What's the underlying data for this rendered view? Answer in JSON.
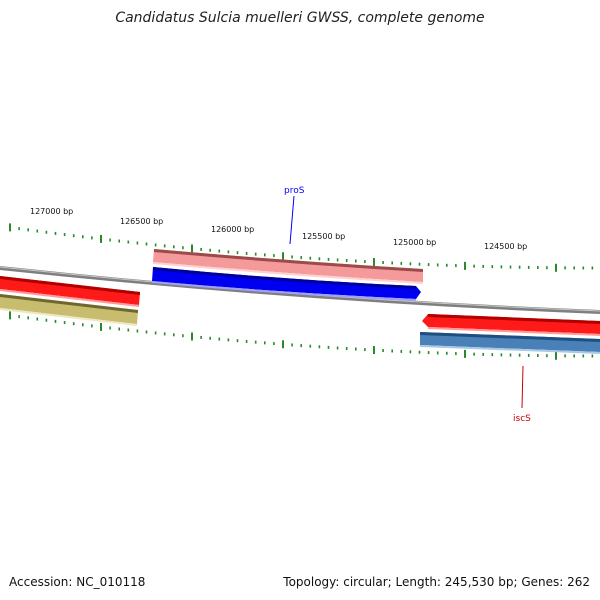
{
  "title": "Candidatus Sulcia muelleri GWSS, complete genome",
  "footer": {
    "accession": "Accession: NC_010118",
    "summary": "Topology: circular; Length: 245,530 bp; Genes: 262"
  },
  "ruler_labels": [
    "127000 bp",
    "126500 bp",
    "126000 bp",
    "125500 bp",
    "125000 bp",
    "124500 bp"
  ],
  "genes": [
    {
      "name": "proS",
      "color": "#0000ff"
    },
    {
      "name": "iscS",
      "color": "#cc0000"
    }
  ],
  "colors": {
    "backbone": "#808080",
    "tick": "#2a8a2a",
    "forward_red": "#ff0000",
    "forward_pink": "#f08a8a",
    "reverse_blue": "#0000ee",
    "reverse_steel": "#4a80b8",
    "olive": "#c4b86a"
  }
}
